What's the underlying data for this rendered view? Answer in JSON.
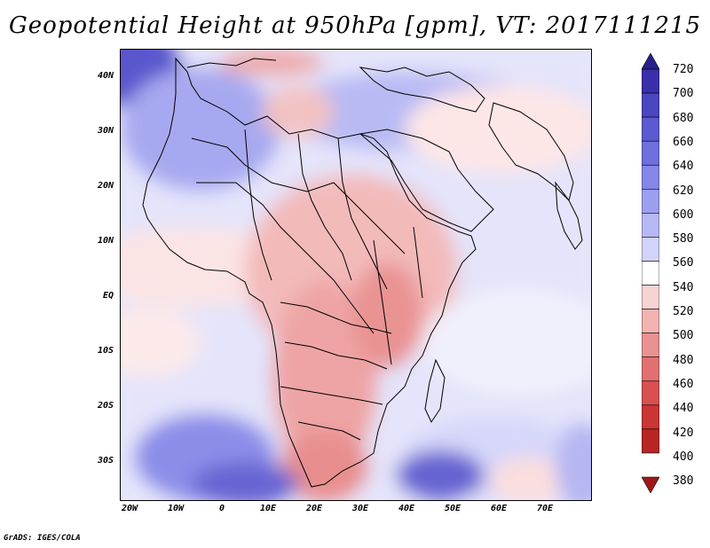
{
  "title": "Geopotential Height at 950hPa [gpm], VT: 2017111215",
  "credit": "GrADS: IGES/COLA",
  "map": {
    "lat_labels": [
      "40N",
      "30N",
      "20N",
      "10N",
      "EQ",
      "10S",
      "20S",
      "30S"
    ],
    "lon_labels": [
      "20W",
      "10W",
      "0",
      "10E",
      "20E",
      "30E",
      "40E",
      "50E",
      "60E",
      "70E"
    ],
    "region": "Africa, Arabian Peninsula, Mediterranean, western Indian Ocean"
  },
  "colorbar": {
    "levels": [
      "720",
      "700",
      "680",
      "660",
      "640",
      "620",
      "600",
      "580",
      "560",
      "540",
      "520",
      "500",
      "480",
      "460",
      "440",
      "420",
      "400",
      "380"
    ],
    "colors": [
      "#2a1f8f",
      "#3a2fa8",
      "#4a45c0",
      "#5c5ad0",
      "#6f70de",
      "#8586e8",
      "#9c9eef",
      "#b6b8f4",
      "#d2d3f9",
      "#ffffff",
      "#f8d3d3",
      "#f2b3b3",
      "#ea9191",
      "#e27070",
      "#d95050",
      "#cc3535",
      "#b82525",
      "#a01818"
    ]
  }
}
